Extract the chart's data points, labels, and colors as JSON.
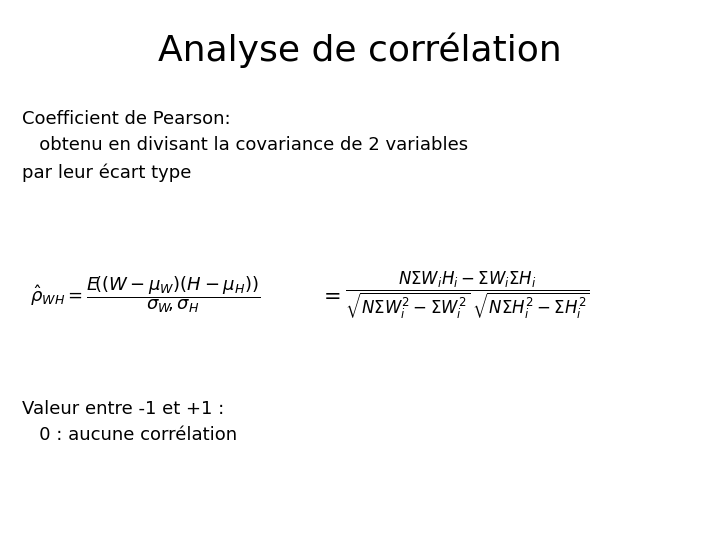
{
  "title": "Analyse de corrélation",
  "title_fontsize": 26,
  "background_color": "#ffffff",
  "text_color": "#000000",
  "text1_line1": "Coefficient de Pearson:",
  "text1_line2": "   obtenu en divisant la covariance de 2 variables",
  "text1_line3": "par leur écart type",
  "text2_line1": "Valeur entre -1 et +1 :",
  "text2_line2": "   0 : aucune corrélation",
  "text_fontsize": 13,
  "formula_fontsize_lhs": 13,
  "formula_fontsize_rhs": 12
}
